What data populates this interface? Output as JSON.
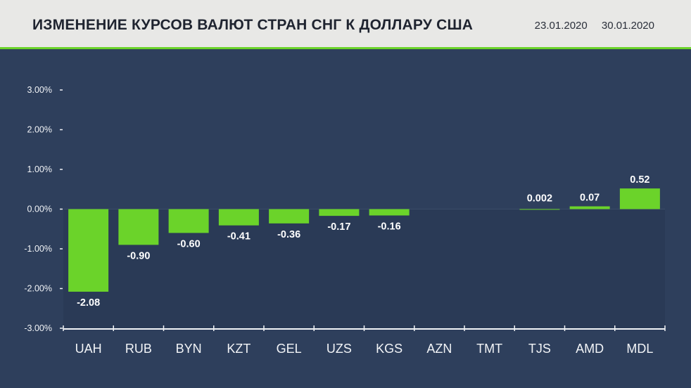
{
  "header": {
    "title": "ИЗМЕНЕНИЕ КУРСОВ ВАЛЮТ СТРАН СНГ К ДОЛЛАРУ США",
    "date_from": "23.01.2020",
    "date_to": "30.01.2020"
  },
  "colors": {
    "background": "#2e3f5c",
    "header_bg": "#e8e8e6",
    "accent": "#6bd32a",
    "bar": "#6bd32a",
    "negative_area": "#2a3a56"
  },
  "chart_data": {
    "type": "bar",
    "title": "ИЗМЕНЕНИЕ КУРСОВ ВАЛЮТ СТРАН СНГ К ДОЛЛАРУ США",
    "categories": [
      "UAH",
      "RUB",
      "BYN",
      "KZT",
      "GEL",
      "UZS",
      "KGS",
      "AZN",
      "TMT",
      "TJS",
      "AMD",
      "MDL"
    ],
    "values": [
      -2.08,
      -0.9,
      -0.6,
      -0.41,
      -0.36,
      -0.17,
      -0.16,
      0,
      0,
      0.002,
      0.07,
      0.52
    ],
    "value_labels": [
      "-2.08",
      "-0.90",
      "-0.60",
      "-0.41",
      "-0.36",
      "-0.17",
      "-0.16",
      "",
      "",
      "0.002",
      "0.07",
      "0.52"
    ],
    "y_ticks": [
      3,
      2,
      1,
      0,
      -1,
      -2,
      -3
    ],
    "y_tick_labels": [
      "3.00%",
      "2.00%",
      "1.00%",
      "0.00%",
      "-1.00%",
      "-2.00%",
      "-3.00%"
    ],
    "ylim": [
      -3,
      3
    ],
    "grid": false
  }
}
